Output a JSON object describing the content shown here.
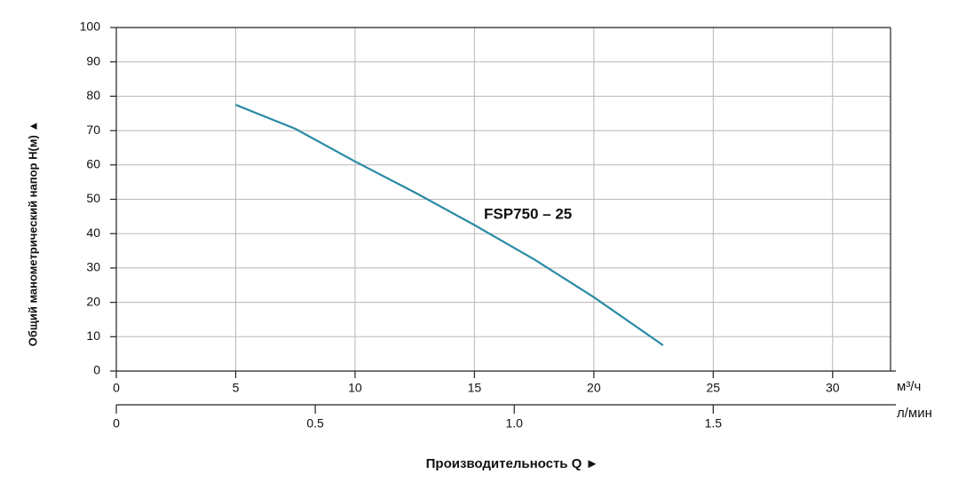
{
  "chart_data": {
    "type": "line",
    "annotation": "FSP750 – 25",
    "y_label": "Общий манометрический напор Н(м) ▲",
    "x_label": "Производительность Q ►",
    "x_unit": "м³/ч",
    "x2_unit": "л/мин",
    "x": [
      5,
      7.5,
      10,
      12.5,
      15,
      17.5,
      20,
      22.9
    ],
    "values": [
      77.5,
      70.5,
      61,
      52,
      42.5,
      32.5,
      21.5,
      7.5
    ],
    "color": "#2a8aa5",
    "xlim": [
      0,
      32.5
    ],
    "xticks": [
      0,
      5,
      10,
      15,
      20,
      25,
      30
    ],
    "x2lim": [
      0,
      1.95
    ],
    "x2ticks": [
      0,
      0.5,
      {
        "value": 1,
        "label": "1.0"
      },
      1.5
    ],
    "ylim": [
      0,
      100
    ],
    "yticks": [
      0,
      10,
      20,
      30,
      40,
      50,
      60,
      70,
      80,
      90,
      100
    ],
    "grid": true
  }
}
